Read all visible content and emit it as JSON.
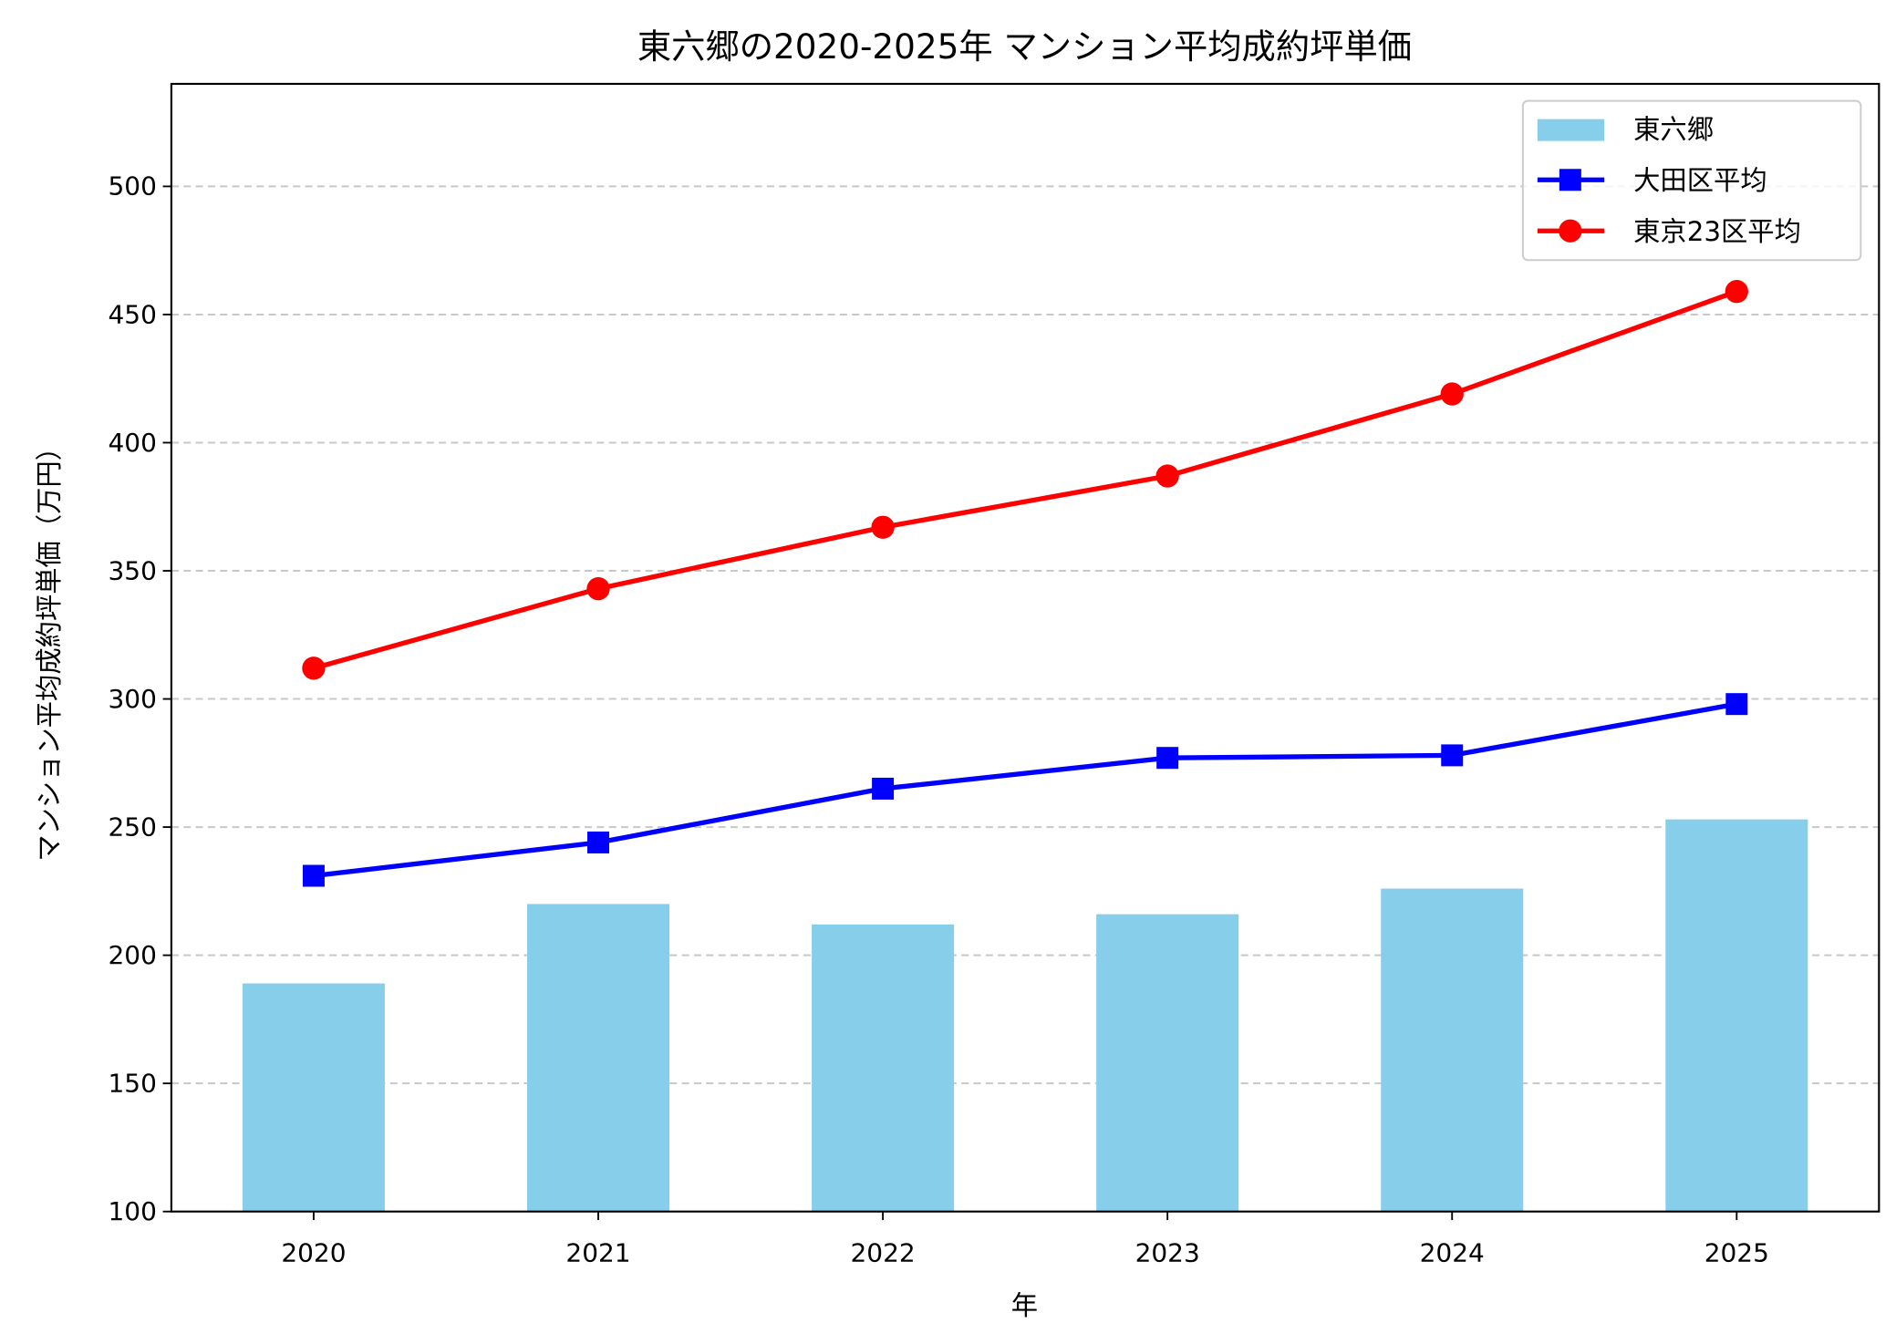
{
  "chart_data": {
    "type": "bar+line",
    "title": "東六郷の2020-2025年 マンション平均成約坪単価",
    "xlabel": "年",
    "ylabel": "マンション平均成約坪単価（万円）",
    "categories": [
      "2020",
      "2021",
      "2022",
      "2023",
      "2024",
      "2025"
    ],
    "ylim": [
      100,
      540
    ],
    "yticks": [
      100,
      150,
      200,
      250,
      300,
      350,
      400,
      450,
      500
    ],
    "grid": "horizontal dashed",
    "legend_position": "top-right",
    "series": [
      {
        "name": "東六郷",
        "kind": "bar",
        "color": "#87CEEB",
        "values": [
          189,
          220,
          212,
          216,
          226,
          253
        ]
      },
      {
        "name": "大田区平均",
        "kind": "line",
        "marker": "square",
        "color": "#0000FF",
        "values": [
          231,
          244,
          265,
          277,
          278,
          298
        ]
      },
      {
        "name": "東京23区平均",
        "kind": "line",
        "marker": "circle",
        "color": "#FF0000",
        "values": [
          312,
          343,
          367,
          387,
          419,
          459
        ]
      }
    ]
  }
}
